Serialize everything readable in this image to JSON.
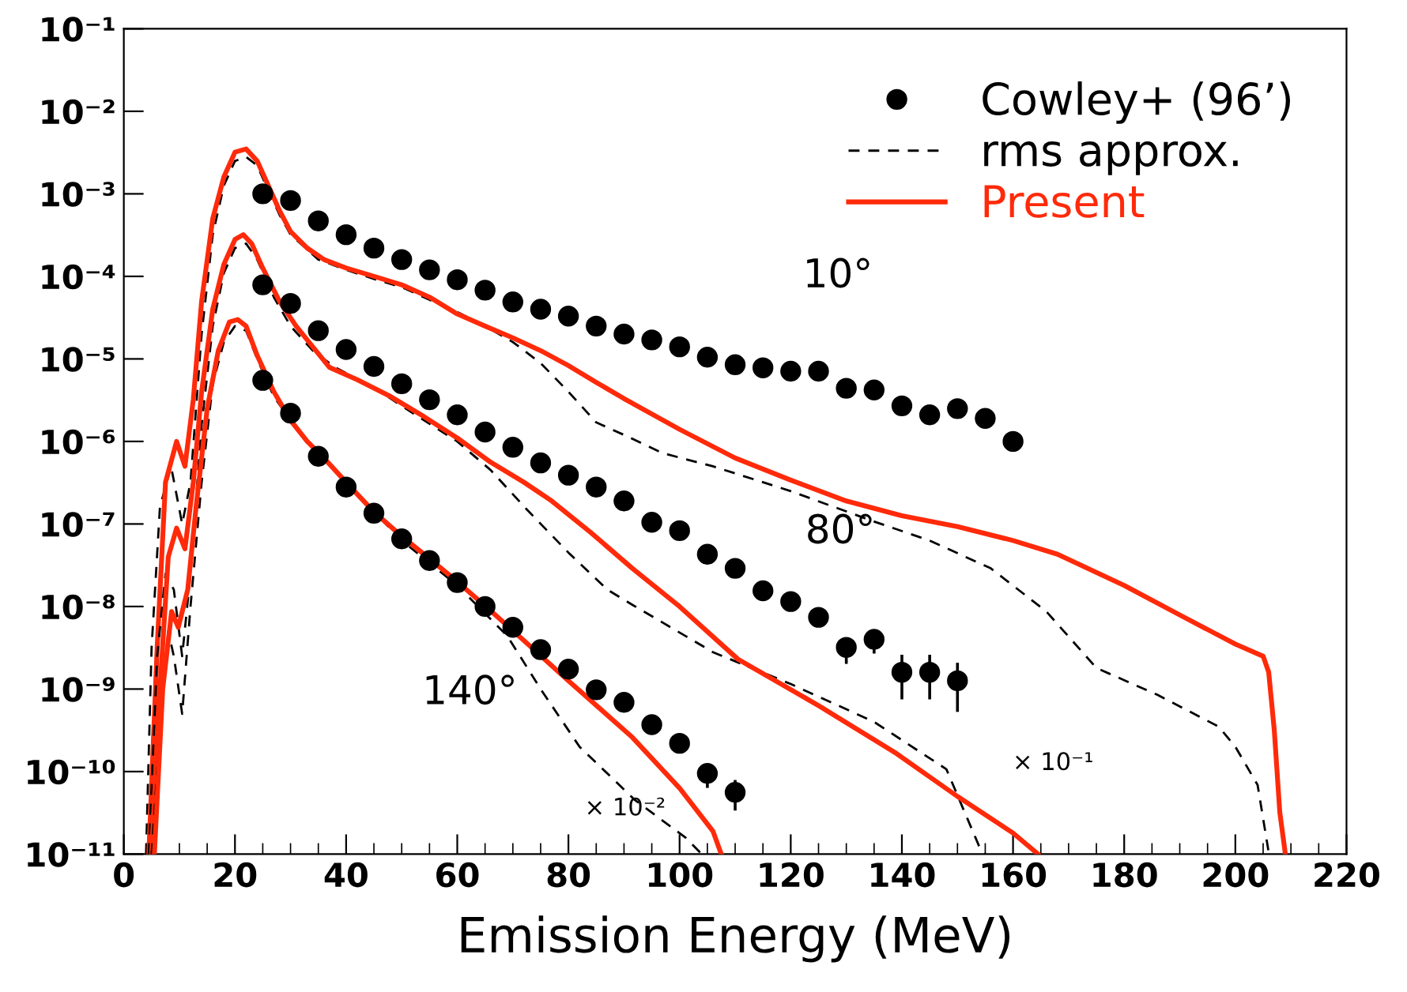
{
  "chart_data": {
    "type": "line",
    "xlabel": "Emission Energy (MeV)",
    "log": "y",
    "legend": "top right",
    "grid": false,
    "xlim": [
      0,
      220
    ],
    "xticks": [
      0,
      20,
      40,
      60,
      80,
      100,
      120,
      140,
      160,
      180,
      200,
      220
    ],
    "ylim": [
      1e-11,
      0.1
    ],
    "yticks": [
      {
        "value": 1e-11,
        "label": "10⁻¹¹"
      },
      {
        "value": 1e-10,
        "label": "10⁻¹⁰"
      },
      {
        "value": 1e-09,
        "label": "10⁻⁹"
      },
      {
        "value": 1e-08,
        "label": "10⁻⁸"
      },
      {
        "value": 1e-07,
        "label": "10⁻⁷"
      },
      {
        "value": 1e-06,
        "label": "10⁻⁶"
      },
      {
        "value": 1e-05,
        "label": "10⁻⁵"
      },
      {
        "value": 0.0001,
        "label": "10⁻⁴"
      },
      {
        "value": 0.001,
        "label": "10⁻³"
      },
      {
        "value": 0.01,
        "label": "10⁻²"
      },
      {
        "value": 0.1,
        "label": "10⁻¹"
      }
    ],
    "annotations": [
      "10°",
      "80°",
      "140°",
      "× 10⁻¹",
      "× 10⁻²"
    ],
    "series": [
      {
        "name": "Cowley+ (96’)",
        "type": "scatter",
        "marker": "circle",
        "color": "#000000",
        "x": [
          25,
          30,
          35,
          40,
          45,
          50,
          55,
          60,
          65,
          70,
          75,
          80,
          85,
          90,
          95,
          100,
          105,
          110,
          115,
          120,
          125,
          130,
          135,
          140,
          145,
          150,
          155,
          160
        ],
        "values": [
          0.001,
          0.00083,
          0.00047,
          0.00032,
          0.00022,
          0.00016,
          0.00012,
          9.1e-05,
          6.8e-05,
          4.9e-05,
          4e-05,
          3.3e-05,
          2.5e-05,
          2e-05,
          1.7e-05,
          1.4e-05,
          1.05e-05,
          8.5e-06,
          7.8e-06,
          7.1e-06,
          7.1e-06,
          4.4e-06,
          4.2e-06,
          2.7e-06,
          2.1e-06,
          2.5e-06,
          1.9e-06,
          1e-06
        ]
      },
      {
        "name": "rms approx.",
        "line_style": "dashed",
        "color": "#000000",
        "x": [
          4,
          5,
          6.5,
          8.5,
          10.5,
          12,
          14,
          16,
          18,
          20,
          22,
          24,
          26,
          28,
          30,
          35,
          40,
          45,
          50,
          55,
          60,
          65,
          70,
          75,
          80,
          85,
          90,
          97,
          106,
          120,
          135,
          145,
          156,
          166,
          175,
          186,
          197,
          200,
          204,
          206
        ],
        "values": [
          1e-11,
          3.2e-09,
          1.6e-07,
          5e-07,
          1e-07,
          3.2e-07,
          2e-05,
          0.00032,
          0.00126,
          0.0025,
          0.0028,
          0.0022,
          0.0011,
          0.00056,
          0.00032,
          0.00016,
          0.00012,
          9.3e-05,
          7.4e-05,
          5.2e-05,
          3.7e-05,
          2.5e-05,
          1.6e-05,
          8.9e-06,
          4e-06,
          1.7e-06,
          1.2e-06,
          7.2e-07,
          5e-07,
          2.5e-07,
          1.07e-07,
          6.3e-08,
          2.9e-08,
          8.7e-09,
          1.8e-09,
          8.5e-10,
          3.5e-10,
          2e-10,
          6.9e-11,
          1.05e-11
        ]
      },
      {
        "name": "Present",
        "line_style": "solid",
        "color": "#ff2a0a",
        "x": [
          4.5,
          6,
          7.5,
          9.5,
          11,
          12.5,
          14,
          16,
          18,
          20,
          22,
          24,
          26,
          28,
          30,
          33,
          36,
          40,
          45,
          50,
          55,
          60,
          65,
          70,
          75,
          80,
          85,
          90,
          100,
          110,
          120,
          130,
          140,
          150,
          160,
          168,
          180,
          190,
          200,
          205,
          206,
          207,
          208,
          209
        ],
        "values": [
          1e-11,
          3.2e-09,
          3.2e-07,
          1e-06,
          5e-07,
          3.2e-06,
          5e-05,
          0.0005,
          0.0016,
          0.0032,
          0.0035,
          0.0025,
          0.00126,
          0.00063,
          0.00035,
          0.00022,
          0.00016,
          0.000126,
          0.0001,
          7.9e-05,
          5.6e-05,
          3.5e-05,
          2.5e-05,
          1.8e-05,
          1.26e-05,
          8.3e-06,
          5.2e-06,
          3.3e-06,
          1.4e-06,
          6.3e-07,
          3.4e-07,
          1.9e-07,
          1.26e-07,
          9.3e-08,
          6.3e-08,
          4.3e-08,
          1.8e-08,
          7.9e-09,
          3.5e-09,
          2.5e-09,
          1.6e-09,
          3.2e-10,
          3.2e-11,
          1e-11
        ]
      },
      {
        "type": "scatter",
        "marker": "circle",
        "color": "#000000",
        "x": [
          25,
          30,
          35,
          40,
          45,
          50,
          55,
          60,
          65,
          70,
          75,
          80,
          85,
          90,
          95,
          100,
          105,
          110,
          115,
          120,
          125,
          130,
          135,
          140,
          145,
          150
        ],
        "values": [
          7.9e-05,
          4.7e-05,
          2.2e-05,
          1.3e-05,
          8.1e-06,
          5e-06,
          3.2e-06,
          2.1e-06,
          1.3e-06,
          8.5e-07,
          5.5e-07,
          3.9e-07,
          2.8e-07,
          1.9e-07,
          1.05e-07,
          8.3e-08,
          4.3e-08,
          2.9e-08,
          1.55e-08,
          1.15e-08,
          7.4e-09,
          3.2e-09,
          4e-09,
          1.6e-09,
          1.6e-09,
          1.26e-09
        ],
        "errors": [
          null,
          null,
          null,
          null,
          null,
          null,
          null,
          null,
          null,
          null,
          null,
          null,
          null,
          null,
          null,
          null,
          null,
          null,
          null,
          null,
          null,
          [
            2.1e-09,
            4e-09
          ],
          [
            2.8e-09,
            5e-09
          ],
          [
            7.8e-10,
            2.5e-09
          ],
          [
            7.8e-10,
            2.5e-09
          ],
          [
            5.5e-10,
            2e-09
          ]
        ]
      },
      {
        "line_style": "dashed",
        "color": "#000000",
        "x": [
          4.5,
          6,
          7.5,
          9,
          10.5,
          12,
          14,
          16,
          18,
          20,
          22,
          24,
          27,
          30,
          34,
          38,
          45,
          52,
          60,
          66,
          72.5,
          80,
          87,
          91.5,
          106,
          120,
          135,
          148,
          154,
          155
        ],
        "values": [
          1e-11,
          2.5e-09,
          2.5e-08,
          1.6e-08,
          2.5e-09,
          2.5e-08,
          1.6e-06,
          2.5e-05,
          0.00011,
          0.00022,
          0.00025,
          0.00016,
          5.6e-05,
          2.5e-05,
          1.26e-05,
          7.9e-06,
          4.5e-06,
          2.2e-06,
          1e-06,
          4.5e-07,
          1.5e-07,
          4.5e-08,
          1.6e-08,
          1.05e-08,
          2.8e-09,
          1.15e-09,
          4e-10,
          1.07e-10,
          1.2e-11,
          1e-11
        ]
      },
      {
        "line_style": "solid",
        "color": "#ff2a0a",
        "x": [
          5,
          6.5,
          8,
          9.5,
          11,
          12.5,
          14,
          16,
          18,
          20,
          21.5,
          23,
          25,
          28,
          31,
          34,
          37,
          42,
          48,
          54,
          60,
          66,
          72,
          77,
          84,
          91.5,
          100,
          110.5,
          125,
          139,
          150,
          160,
          164.5
        ],
        "values": [
          1e-11,
          1e-09,
          4e-08,
          8.9e-08,
          5e-08,
          3.2e-07,
          4e-06,
          4e-05,
          0.00014,
          0.00028,
          0.00032,
          0.00025,
          0.000126,
          5e-05,
          2.5e-05,
          1.4e-05,
          7.9e-06,
          5.6e-06,
          3.5e-06,
          2e-06,
          1.1e-06,
          5.6e-07,
          3.2e-07,
          1.9e-07,
          7.9e-08,
          2.9e-08,
          1e-08,
          2.3e-09,
          6.3e-10,
          1.66e-10,
          5e-11,
          1.8e-11,
          1e-11
        ]
      },
      {
        "type": "scatter",
        "marker": "circle",
        "color": "#000000",
        "x": [
          25,
          30,
          35,
          40,
          45,
          50,
          55,
          60,
          65,
          70,
          75,
          80,
          85,
          90,
          95,
          100,
          105,
          110
        ],
        "values": [
          5.5e-06,
          2.2e-06,
          6.6e-07,
          2.8e-07,
          1.35e-07,
          6.6e-08,
          3.6e-08,
          1.95e-08,
          1e-08,
          5.6e-09,
          3e-09,
          1.74e-09,
          9.8e-10,
          6.9e-10,
          3.7e-10,
          2.2e-10,
          9.5e-11,
          5.6e-11
        ],
        "errors": [
          null,
          null,
          null,
          null,
          null,
          null,
          null,
          null,
          null,
          null,
          null,
          null,
          null,
          null,
          null,
          null,
          [
            6.6e-11,
            1.17e-10
          ],
          [
            3.5e-11,
            7.6e-11
          ]
        ]
      },
      {
        "line_style": "dashed",
        "color": "#000000",
        "x": [
          5,
          6.5,
          8,
          9,
          10.5,
          12,
          14,
          16,
          18,
          20,
          22,
          24,
          27,
          30,
          35,
          40,
          50,
          60,
          69,
          75,
          82,
          92,
          101,
          104
        ],
        "values": [
          1e-11,
          3.2e-10,
          5e-09,
          2.5e-09,
          5e-10,
          1e-08,
          3.2e-07,
          5e-06,
          1.6e-05,
          2.5e-05,
          2.2e-05,
          1e-05,
          3.5e-06,
          1.8e-06,
          7.1e-07,
          3.2e-07,
          6.3e-08,
          1.8e-08,
          4.4e-09,
          1e-09,
          2e-10,
          4.5e-11,
          1.6e-11,
          1e-11
        ]
      },
      {
        "line_style": "solid",
        "color": "#ff2a0a",
        "x": [
          5.5,
          7,
          8.6,
          9.8,
          11.5,
          13,
          15,
          17,
          19,
          20.5,
          22,
          24,
          27,
          30,
          33,
          36,
          40,
          45,
          50,
          55,
          60,
          66,
          72.5,
          80,
          91.5,
          100,
          106,
          107.5
        ],
        "values": [
          1e-11,
          1e-09,
          8.7e-09,
          5.6e-09,
          1.6e-08,
          1.6e-07,
          2.5e-06,
          1.26e-05,
          2.8e-05,
          3e-05,
          2.5e-05,
          1.1e-05,
          4e-06,
          1.8e-06,
          1e-06,
          6.3e-07,
          3.2e-07,
          1.4e-07,
          7.1e-08,
          3.8e-08,
          2e-08,
          8.9e-09,
          3.6e-09,
          1.26e-09,
          2.6e-10,
          6.3e-11,
          1.9e-11,
          1e-11
        ]
      }
    ]
  }
}
